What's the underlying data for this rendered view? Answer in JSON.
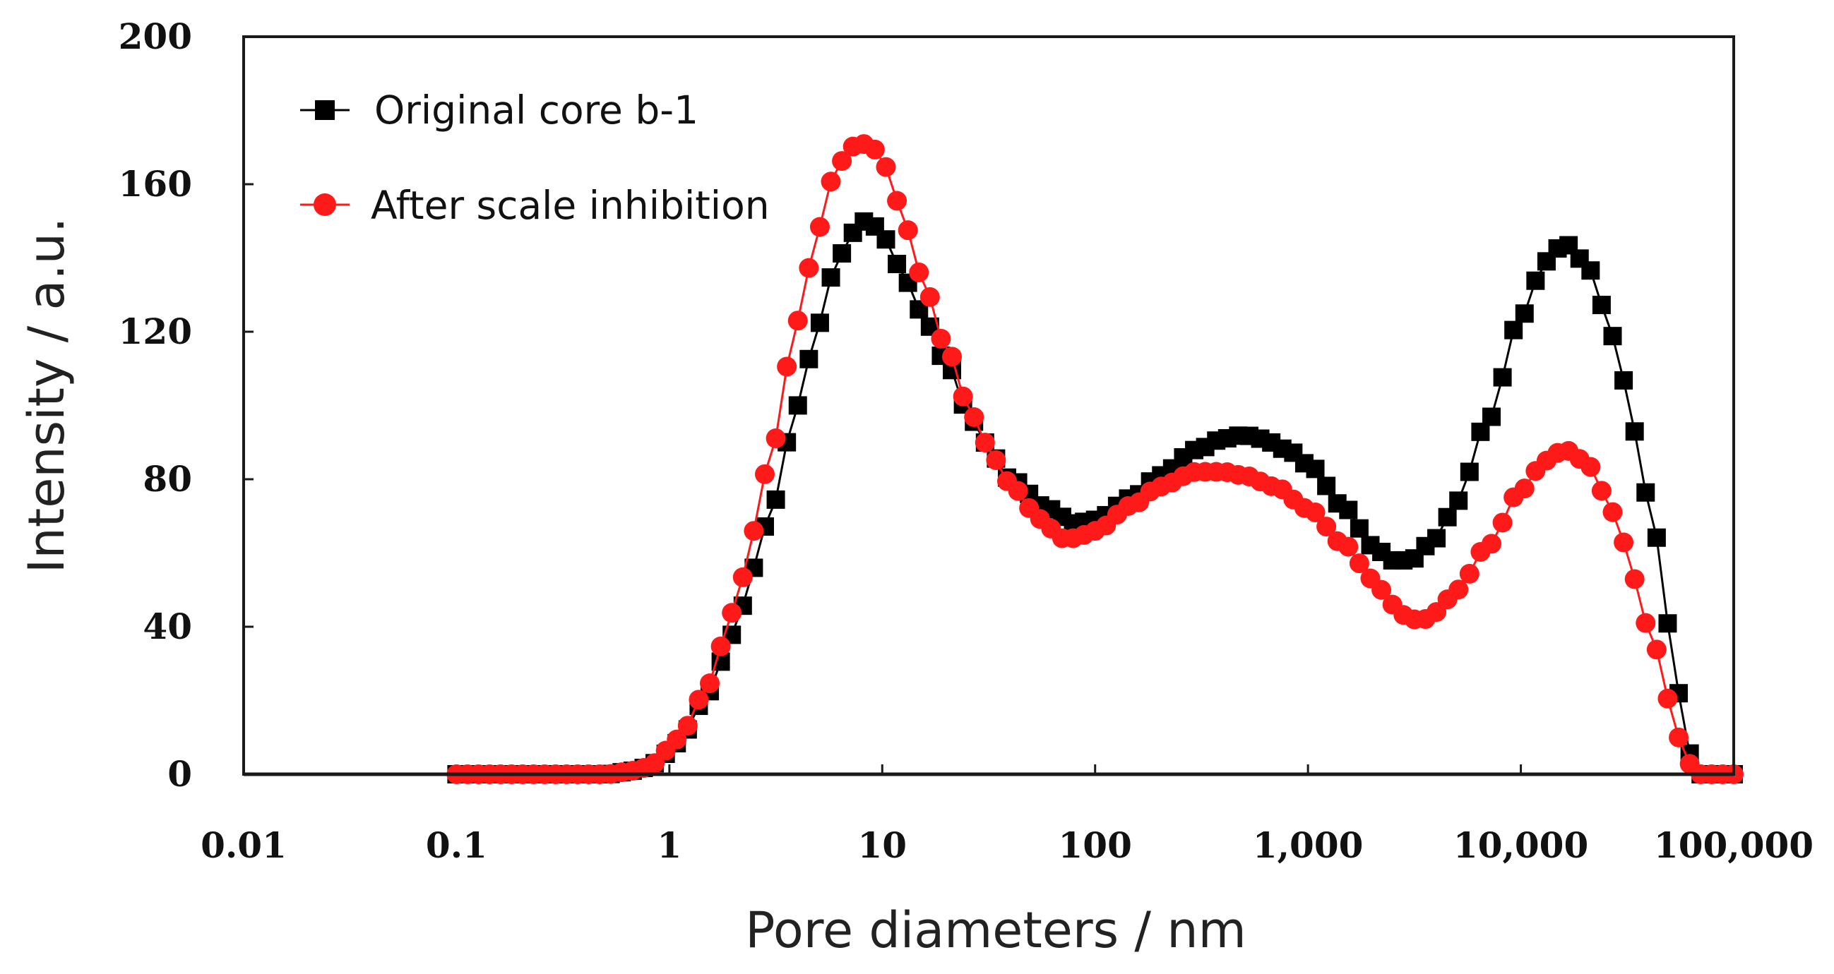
{
  "chart_data": {
    "type": "line",
    "title": "",
    "xlabel": "Pore diameters / nm",
    "ylabel": "Intensity / a.u.",
    "x_scale": "log",
    "xlim": [
      0.01,
      100000
    ],
    "ylim": [
      0,
      200
    ],
    "x_ticks": [
      0.01,
      0.1,
      1,
      10,
      100,
      1000,
      10000,
      100000
    ],
    "x_tick_labels": [
      "0.01",
      "0.1",
      "1",
      "10",
      "100",
      "1,000",
      "10,000",
      "100,000"
    ],
    "y_ticks": [
      0,
      40,
      80,
      120,
      160,
      200
    ],
    "y_tick_labels": [
      "0",
      "40",
      "80",
      "120",
      "160",
      "200"
    ],
    "grid": false,
    "legend_position": "top-left",
    "series": [
      {
        "name": "Original core b-1",
        "color": "#000000",
        "marker": "square",
        "anchors": [
          [
            0.1,
            0
          ],
          [
            0.5,
            0
          ],
          [
            0.7,
            1
          ],
          [
            0.85,
            3
          ],
          [
            1,
            6
          ],
          [
            1.2,
            12
          ],
          [
            1.5,
            22
          ],
          [
            2,
            38
          ],
          [
            2.5,
            56
          ],
          [
            3,
            72
          ],
          [
            4,
            100
          ],
          [
            5,
            122
          ],
          [
            6,
            137
          ],
          [
            7,
            146
          ],
          [
            8,
            150
          ],
          [
            9,
            149
          ],
          [
            10,
            146
          ],
          [
            12,
            138
          ],
          [
            15,
            126
          ],
          [
            20,
            112
          ],
          [
            25,
            99
          ],
          [
            30,
            90
          ],
          [
            40,
            80
          ],
          [
            60,
            72
          ],
          [
            80,
            68
          ],
          [
            100,
            69
          ],
          [
            150,
            75
          ],
          [
            200,
            81
          ],
          [
            300,
            88
          ],
          [
            400,
            91
          ],
          [
            500,
            92
          ],
          [
            600,
            91
          ],
          [
            800,
            88
          ],
          [
            1000,
            84
          ],
          [
            1500,
            72
          ],
          [
            2000,
            62
          ],
          [
            2500,
            58
          ],
          [
            3000,
            58
          ],
          [
            4000,
            64
          ],
          [
            5000,
            74
          ],
          [
            7000,
            96
          ],
          [
            10000,
            124
          ],
          [
            13000,
            139
          ],
          [
            16000,
            144
          ],
          [
            20000,
            139
          ],
          [
            25000,
            126
          ],
          [
            30000,
            107
          ],
          [
            40000,
            75
          ],
          [
            50000,
            40
          ],
          [
            55000,
            22
          ],
          [
            60000,
            8
          ],
          [
            65000,
            2
          ],
          [
            70000,
            0
          ],
          [
            100000,
            0
          ]
        ]
      },
      {
        "name": "After scale inhibition",
        "color": "#ff1a1a",
        "marker": "circle",
        "anchors": [
          [
            0.1,
            0
          ],
          [
            0.5,
            0
          ],
          [
            0.7,
            1
          ],
          [
            0.85,
            3
          ],
          [
            1,
            7
          ],
          [
            1.2,
            13
          ],
          [
            1.5,
            24
          ],
          [
            2,
            44
          ],
          [
            2.5,
            66
          ],
          [
            3,
            88
          ],
          [
            4,
            123
          ],
          [
            5,
            148
          ],
          [
            6,
            163
          ],
          [
            7,
            170
          ],
          [
            8,
            171
          ],
          [
            9,
            170
          ],
          [
            10,
            166
          ],
          [
            12,
            155
          ],
          [
            15,
            136
          ],
          [
            20,
            116
          ],
          [
            25,
            101
          ],
          [
            30,
            90
          ],
          [
            40,
            79
          ],
          [
            50,
            72
          ],
          [
            60,
            67
          ],
          [
            70,
            64
          ],
          [
            80,
            64
          ],
          [
            100,
            66
          ],
          [
            150,
            73
          ],
          [
            200,
            78
          ],
          [
            300,
            82
          ],
          [
            400,
            82
          ],
          [
            500,
            81
          ],
          [
            700,
            78
          ],
          [
            1000,
            72
          ],
          [
            1500,
            62
          ],
          [
            2000,
            53
          ],
          [
            2500,
            46
          ],
          [
            3000,
            42
          ],
          [
            3500,
            42
          ],
          [
            4000,
            44
          ],
          [
            5000,
            50
          ],
          [
            7000,
            62
          ],
          [
            10000,
            77
          ],
          [
            13000,
            85
          ],
          [
            16000,
            88
          ],
          [
            20000,
            85
          ],
          [
            25000,
            76
          ],
          [
            30000,
            63
          ],
          [
            40000,
            40
          ],
          [
            50000,
            20
          ],
          [
            55000,
            10
          ],
          [
            60000,
            4
          ],
          [
            65000,
            1
          ],
          [
            70000,
            0
          ],
          [
            100000,
            0
          ]
        ]
      }
    ],
    "sample_points": 117
  }
}
